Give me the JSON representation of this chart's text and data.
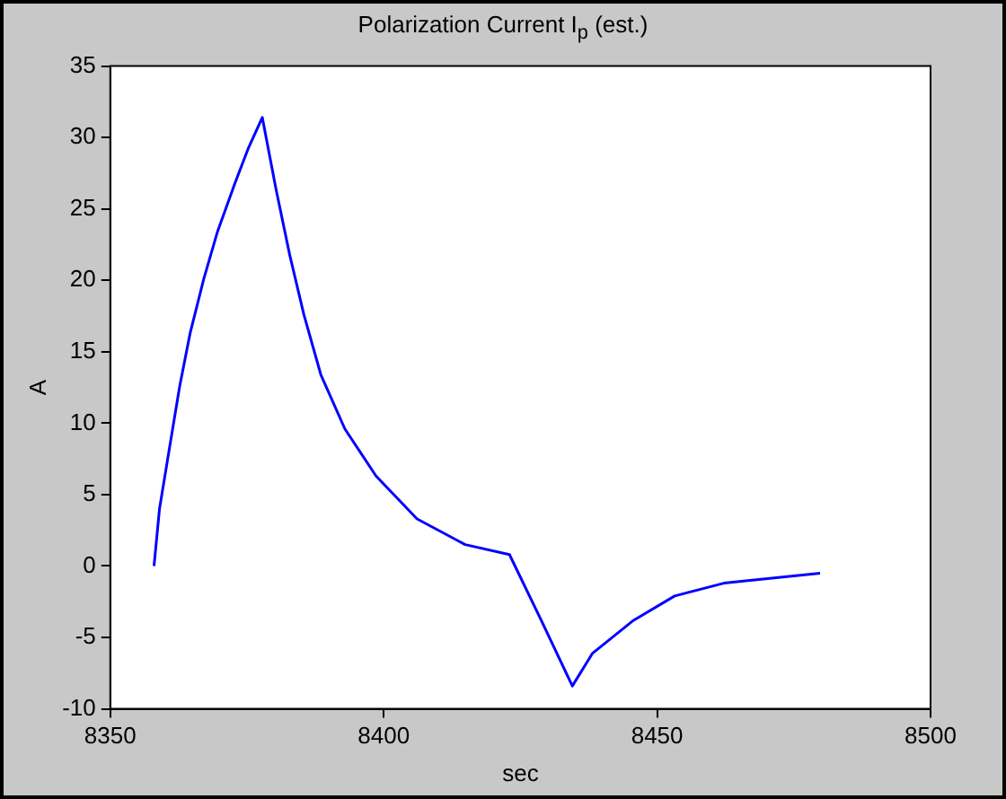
{
  "chart_data": {
    "type": "line",
    "title": "Polarization Current I$_{p}$ (est.)",
    "xlabel": "sec",
    "ylabel": "A",
    "x": [
      8358,
      8359,
      8360.8,
      8362.7,
      8364.6,
      8367.1,
      8369.6,
      8372.8,
      8375.3,
      8377.8,
      8380.3,
      8382.8,
      8385.4,
      8388.5,
      8392.9,
      8398.6,
      8406.1,
      8414.9,
      8423,
      8428.8,
      8434.5,
      8438.2,
      8445.7,
      8453.2,
      8462.2,
      8479.8
    ],
    "series": [
      {
        "color": "#0000ff",
        "values": [
          0,
          4,
          8.2,
          12.6,
          16.3,
          20.1,
          23.4,
          26.8,
          29.3,
          31.4,
          26.4,
          21.8,
          17.6,
          13.4,
          9.6,
          6.3,
          3.3,
          1.5,
          0.8,
          -3.8,
          -8.4,
          -6.1,
          -3.8,
          -2.1,
          -1.2,
          -0.5
        ]
      }
    ],
    "xlim": [
      8350,
      8500
    ],
    "xticks": [
      8350,
      8400,
      8450,
      8500
    ],
    "ylim": [
      -10,
      35
    ],
    "yticks": [
      -10,
      -5,
      0,
      5,
      10,
      15,
      20,
      25,
      30,
      35
    ],
    "grid": false,
    "legend": false,
    "marker": "none",
    "line_style": "solid"
  }
}
